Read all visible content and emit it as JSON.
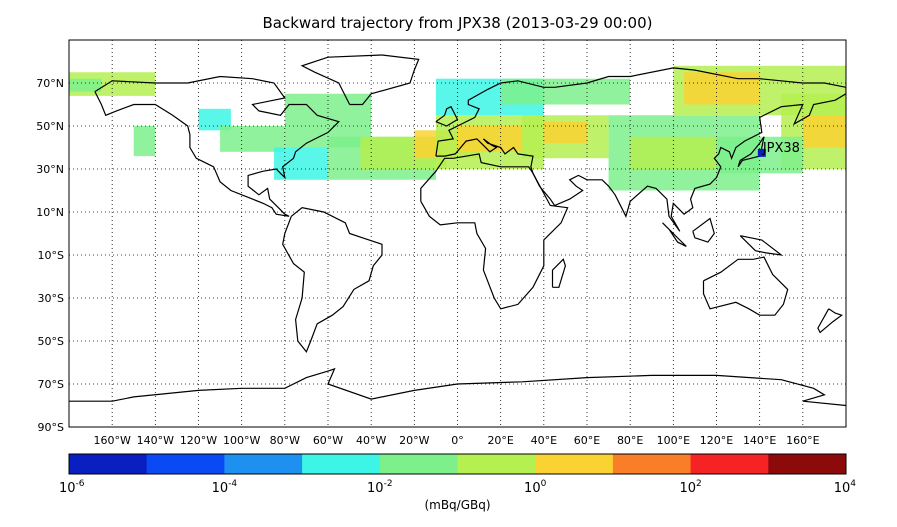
{
  "title": "Backward trajectory from JPX38 (2013-03-29 00:00)",
  "station": {
    "label": "JPX38",
    "lon": 141.0,
    "lat": 37.5,
    "color": "#0a1fbf"
  },
  "map": {
    "lon_range": [
      -180,
      180
    ],
    "lat_range": [
      -90,
      90
    ],
    "lat_ticks": [
      {
        "value": 70,
        "label": "70°N"
      },
      {
        "value": 50,
        "label": "50°N"
      },
      {
        "value": 30,
        "label": "30°N"
      },
      {
        "value": 10,
        "label": "10°N"
      },
      {
        "value": -10,
        "label": "10°S"
      },
      {
        "value": -30,
        "label": "30°S"
      },
      {
        "value": -50,
        "label": "50°S"
      },
      {
        "value": -70,
        "label": "70°S"
      },
      {
        "value": -90,
        "label": "90°S"
      }
    ],
    "lon_ticks": [
      {
        "value": -160,
        "label": "160°W"
      },
      {
        "value": -140,
        "label": "140°W"
      },
      {
        "value": -120,
        "label": "120°W"
      },
      {
        "value": -100,
        "label": "100°W"
      },
      {
        "value": -80,
        "label": "80°W"
      },
      {
        "value": -60,
        "label": "60°W"
      },
      {
        "value": -40,
        "label": "40°W"
      },
      {
        "value": -20,
        "label": "20°W"
      },
      {
        "value": 0,
        "label": "0°"
      },
      {
        "value": 20,
        "label": "20°E"
      },
      {
        "value": 40,
        "label": "40°E"
      },
      {
        "value": 60,
        "label": "60°E"
      },
      {
        "value": 80,
        "label": "80°E"
      },
      {
        "value": 100,
        "label": "100°E"
      },
      {
        "value": 120,
        "label": "120°E"
      },
      {
        "value": 140,
        "label": "140°E"
      },
      {
        "value": 160,
        "label": "160°E"
      }
    ],
    "grid": "dotted"
  },
  "colorbar": {
    "label": "(mBq/GBq)",
    "colors": [
      "#0a1fbf",
      "#0a4af5",
      "#1e90f0",
      "#3cf5e6",
      "#7df08c",
      "#b4f050",
      "#fad232",
      "#fa7d28",
      "#f52323",
      "#8c0a0a"
    ],
    "tick_labels": [
      {
        "base": "10",
        "exp": "-6"
      },
      {
        "base": "10",
        "exp": "-4"
      },
      {
        "base": "10",
        "exp": "-2"
      },
      {
        "base": "10",
        "exp": "0"
      },
      {
        "base": "10",
        "exp": "2"
      },
      {
        "base": "10",
        "exp": "4"
      }
    ]
  },
  "plume_regions": [
    {
      "lon": [
        -180,
        -140
      ],
      "lat": [
        64,
        75
      ],
      "color": "#b4f050"
    },
    {
      "lon": [
        -180,
        -165
      ],
      "lat": [
        66,
        72
      ],
      "color": "#7df08c"
    },
    {
      "lon": [
        -150,
        -140
      ],
      "lat": [
        36,
        50
      ],
      "color": "#7df08c"
    },
    {
      "lon": [
        -120,
        -105
      ],
      "lat": [
        48,
        58
      ],
      "color": "#3cf5e6"
    },
    {
      "lon": [
        -110,
        -80
      ],
      "lat": [
        38,
        50
      ],
      "color": "#7df08c"
    },
    {
      "lon": [
        -80,
        -40
      ],
      "lat": [
        40,
        65
      ],
      "color": "#7df08c"
    },
    {
      "lon": [
        -85,
        -60
      ],
      "lat": [
        25,
        40
      ],
      "color": "#3cf5e6"
    },
    {
      "lon": [
        -60,
        -10
      ],
      "lat": [
        25,
        45
      ],
      "color": "#7df08c"
    },
    {
      "lon": [
        -45,
        -5
      ],
      "lat": [
        30,
        45
      ],
      "color": "#b4f050"
    },
    {
      "lon": [
        -20,
        10
      ],
      "lat": [
        35,
        48
      ],
      "color": "#fad232"
    },
    {
      "lon": [
        -10,
        40
      ],
      "lat": [
        30,
        55
      ],
      "color": "#b4f050"
    },
    {
      "lon": [
        0,
        30
      ],
      "lat": [
        38,
        50
      ],
      "color": "#fad232"
    },
    {
      "lon": [
        30,
        70
      ],
      "lat": [
        35,
        55
      ],
      "color": "#b4f050"
    },
    {
      "lon": [
        40,
        60
      ],
      "lat": [
        42,
        52
      ],
      "color": "#fad232"
    },
    {
      "lon": [
        -10,
        40
      ],
      "lat": [
        55,
        72
      ],
      "color": "#3cf5e6"
    },
    {
      "lon": [
        20,
        80
      ],
      "lat": [
        60,
        72
      ],
      "color": "#7df08c"
    },
    {
      "lon": [
        70,
        140
      ],
      "lat": [
        20,
        55
      ],
      "color": "#7df08c"
    },
    {
      "lon": [
        80,
        120
      ],
      "lat": [
        30,
        45
      ],
      "color": "#b4f050"
    },
    {
      "lon": [
        100,
        180
      ],
      "lat": [
        55,
        78
      ],
      "color": "#b4f050"
    },
    {
      "lon": [
        105,
        140
      ],
      "lat": [
        60,
        75
      ],
      "color": "#fad232"
    },
    {
      "lon": [
        150,
        180
      ],
      "lat": [
        30,
        65
      ],
      "color": "#b4f050"
    },
    {
      "lon": [
        160,
        180
      ],
      "lat": [
        40,
        55
      ],
      "color": "#fad232"
    },
    {
      "lon": [
        120,
        160
      ],
      "lat": [
        28,
        45
      ],
      "color": "#7df08c"
    }
  ]
}
